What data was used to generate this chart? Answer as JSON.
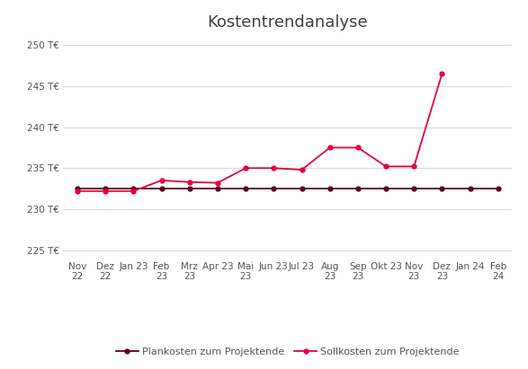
{
  "title": "Kostentrendanalyse",
  "x_labels": [
    "Nov\n22",
    "Dez\n22",
    "Jan 23",
    "Feb\n23",
    "Mrz\n23",
    "Apr 23",
    "Mai\n23",
    "Jun 23",
    "Jul 23",
    "Aug\n23",
    "Sep\n23",
    "Okt 23",
    "Nov\n23",
    "Dez\n23",
    "Jan 24",
    "Feb\n24"
  ],
  "plankosten": [
    232.5,
    232.5,
    232.5,
    232.5,
    232.5,
    232.5,
    232.5,
    232.5,
    232.5,
    232.5,
    232.5,
    232.5,
    232.5,
    232.5,
    232.5,
    232.5
  ],
  "sollkosten": [
    232.2,
    232.2,
    232.2,
    233.5,
    233.3,
    233.2,
    235.0,
    235.0,
    234.8,
    237.5,
    237.5,
    235.2,
    235.2,
    246.5,
    null,
    null
  ],
  "ylim": [
    224,
    251
  ],
  "yticks": [
    225,
    230,
    235,
    240,
    245,
    250
  ],
  "plankosten_color": "#5d0020",
  "sollkosten_color": "#e8003d",
  "legend_plankosten": "Plankosten zum Projektende",
  "legend_sollkosten": "Sollkosten zum Projektende",
  "background_color": "#ffffff",
  "grid_color": "#d9d9d9",
  "title_fontsize": 13,
  "label_fontsize": 7.5,
  "legend_fontsize": 8
}
